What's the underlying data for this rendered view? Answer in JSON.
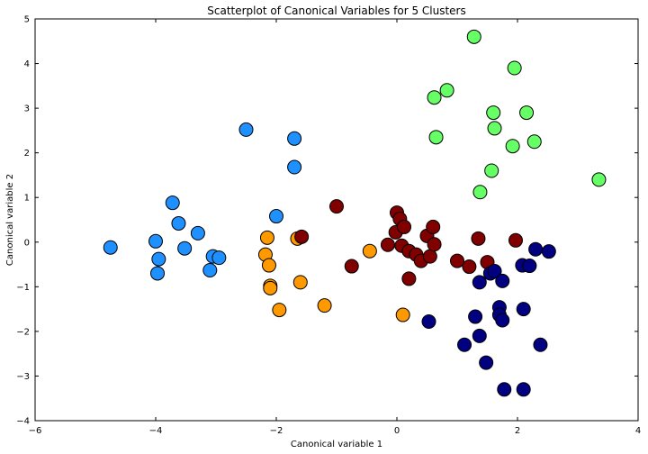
{
  "chart_data": {
    "type": "scatter",
    "title": "Scatterplot of Canonical Variables for 5 Clusters",
    "xlabel": "Canonical variable 1",
    "ylabel": "Canonical variable 2",
    "xlim": [
      -6,
      4
    ],
    "ylim": [
      -4,
      5
    ],
    "xticks": [
      -6,
      -4,
      -2,
      0,
      2,
      4
    ],
    "yticks": [
      -4,
      -3,
      -2,
      -1,
      0,
      1,
      2,
      3,
      4,
      5
    ],
    "grid": false,
    "series": [
      {
        "color": "#1e90ff",
        "points": [
          [
            -4.75,
            -0.12
          ],
          [
            -4.0,
            0.02
          ],
          [
            -3.95,
            -0.38
          ],
          [
            -3.97,
            -0.7
          ],
          [
            -3.72,
            0.88
          ],
          [
            -3.62,
            0.42
          ],
          [
            -3.52,
            -0.14
          ],
          [
            -3.3,
            0.2
          ],
          [
            -3.1,
            -0.63
          ],
          [
            -3.05,
            -0.32
          ],
          [
            -2.95,
            -0.35
          ],
          [
            -2.5,
            2.52
          ],
          [
            -2.0,
            0.58
          ],
          [
            -1.7,
            2.32
          ],
          [
            -1.7,
            1.68
          ]
        ]
      },
      {
        "color": "#ff9900",
        "points": [
          [
            -2.15,
            0.1
          ],
          [
            -2.18,
            -0.28
          ],
          [
            -2.12,
            -0.52
          ],
          [
            -2.1,
            -0.98
          ],
          [
            -2.1,
            -1.03
          ],
          [
            -1.95,
            -1.52
          ],
          [
            -1.65,
            0.08
          ],
          [
            -1.6,
            -0.9
          ],
          [
            -1.2,
            -1.42
          ],
          [
            -0.45,
            -0.2
          ],
          [
            0.1,
            -1.63
          ]
        ]
      },
      {
        "color": "#800000",
        "points": [
          [
            -1.58,
            0.12
          ],
          [
            -1.0,
            0.8
          ],
          [
            -0.75,
            -0.54
          ],
          [
            -0.15,
            -0.06
          ],
          [
            -0.02,
            0.22
          ],
          [
            0.0,
            0.66
          ],
          [
            0.05,
            0.52
          ],
          [
            0.08,
            -0.08
          ],
          [
            0.12,
            0.34
          ],
          [
            0.2,
            -0.2
          ],
          [
            0.2,
            -0.82
          ],
          [
            0.32,
            -0.28
          ],
          [
            0.4,
            -0.42
          ],
          [
            0.5,
            0.14
          ],
          [
            0.55,
            -0.32
          ],
          [
            0.6,
            0.34
          ],
          [
            0.62,
            -0.05
          ],
          [
            1.0,
            -0.42
          ],
          [
            1.2,
            -0.55
          ],
          [
            1.35,
            0.08
          ],
          [
            1.5,
            -0.45
          ],
          [
            1.97,
            0.04
          ]
        ]
      },
      {
        "color": "#000080",
        "points": [
          [
            0.53,
            -1.78
          ],
          [
            1.12,
            -2.3
          ],
          [
            1.3,
            -1.67
          ],
          [
            1.37,
            -2.1
          ],
          [
            1.37,
            -0.9
          ],
          [
            1.48,
            -2.7
          ],
          [
            1.55,
            -0.7
          ],
          [
            1.62,
            -0.65
          ],
          [
            1.7,
            -1.46
          ],
          [
            1.7,
            -1.63
          ],
          [
            1.75,
            -1.75
          ],
          [
            1.75,
            -0.87
          ],
          [
            1.78,
            -3.3
          ],
          [
            2.08,
            -0.52
          ],
          [
            2.1,
            -1.5
          ],
          [
            2.1,
            -3.3
          ],
          [
            2.2,
            -0.53
          ],
          [
            2.3,
            -0.16
          ],
          [
            2.38,
            -2.3
          ],
          [
            2.52,
            -0.21
          ]
        ]
      },
      {
        "color": "#66ff66",
        "points": [
          [
            1.28,
            4.6
          ],
          [
            1.95,
            3.9
          ],
          [
            0.83,
            3.4
          ],
          [
            0.62,
            3.24
          ],
          [
            2.15,
            2.9
          ],
          [
            1.6,
            2.9
          ],
          [
            1.62,
            2.55
          ],
          [
            0.65,
            2.35
          ],
          [
            2.28,
            2.25
          ],
          [
            1.92,
            2.15
          ],
          [
            1.57,
            1.6
          ],
          [
            1.38,
            1.12
          ],
          [
            3.35,
            1.4
          ]
        ]
      }
    ]
  }
}
